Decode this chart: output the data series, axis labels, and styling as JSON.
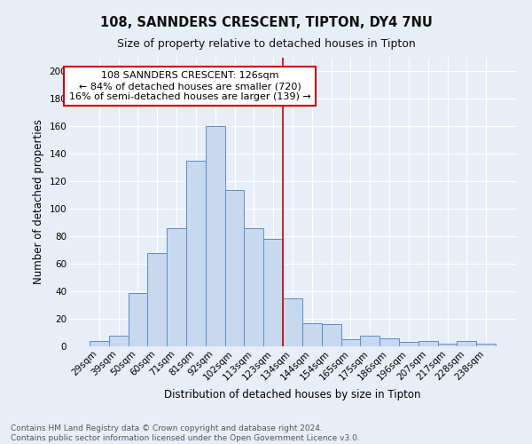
{
  "title1": "108, SANNDERS CRESCENT, TIPTON, DY4 7NU",
  "title2": "Size of property relative to detached houses in Tipton",
  "xlabel": "Distribution of detached houses by size in Tipton",
  "ylabel": "Number of detached properties",
  "bar_labels": [
    "29sqm",
    "39sqm",
    "50sqm",
    "60sqm",
    "71sqm",
    "81sqm",
    "92sqm",
    "102sqm",
    "113sqm",
    "123sqm",
    "134sqm",
    "144sqm",
    "154sqm",
    "165sqm",
    "175sqm",
    "186sqm",
    "196sqm",
    "207sqm",
    "217sqm",
    "228sqm",
    "238sqm"
  ],
  "bar_heights": [
    4,
    8,
    39,
    68,
    86,
    135,
    160,
    114,
    86,
    78,
    35,
    17,
    16,
    5,
    8,
    6,
    3,
    4,
    2,
    4,
    2
  ],
  "bar_color": "#c8d8ef",
  "bar_edge_color": "#5b8dc8",
  "bg_color": "#e8eef7",
  "grid_color": "#ffffff",
  "vline_color": "#cc0000",
  "vline_x": 9.5,
  "annotation_line1": "108 SANNDERS CRESCENT: 126sqm",
  "annotation_line2": "← 84% of detached houses are smaller (720)",
  "annotation_line3": "16% of semi-detached houses are larger (139) →",
  "annotation_box_color": "#ffffff",
  "annotation_box_edge": "#cc0000",
  "footer_text": "Contains HM Land Registry data © Crown copyright and database right 2024.\nContains public sector information licensed under the Open Government Licence v3.0.",
  "ylim": [
    0,
    210
  ],
  "yticks": [
    0,
    20,
    40,
    60,
    80,
    100,
    120,
    140,
    160,
    180,
    200
  ],
  "title1_fontsize": 10.5,
  "title2_fontsize": 9,
  "ylabel_fontsize": 8.5,
  "xlabel_fontsize": 8.5,
  "tick_fontsize": 7.5,
  "annot_fontsize": 8,
  "footer_fontsize": 6.5
}
